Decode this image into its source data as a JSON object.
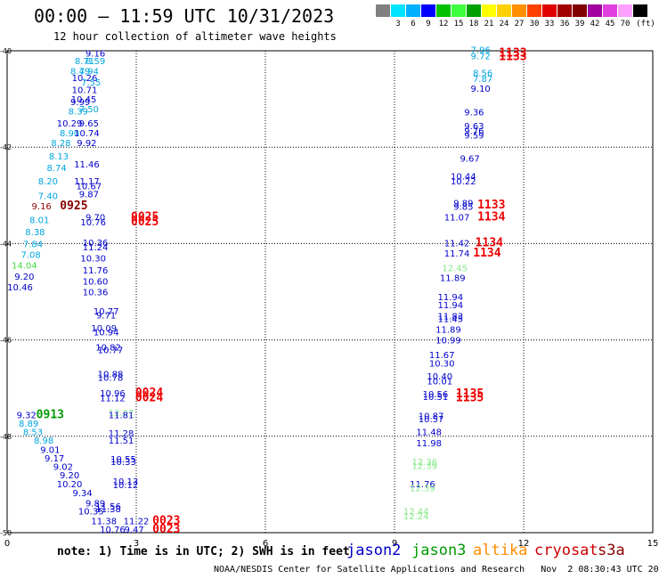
{
  "header": {
    "title": "00:00 – 11:59 UTC 10/31/2023",
    "subtitle": "12 hour collection of altimeter wave heights"
  },
  "color_scale": {
    "unit_label": "(ft)",
    "bins": [
      {
        "label": "",
        "color": "#808080"
      },
      {
        "label": "3",
        "color": "#00e5ff"
      },
      {
        "label": "6",
        "color": "#00b0ff"
      },
      {
        "label": "9",
        "color": "#0000ff"
      },
      {
        "label": "12",
        "color": "#00c000"
      },
      {
        "label": "15",
        "color": "#40ff40"
      },
      {
        "label": "18",
        "color": "#00a000"
      },
      {
        "label": "21",
        "color": "#ffff00"
      },
      {
        "label": "24",
        "color": "#ffd000"
      },
      {
        "label": "27",
        "color": "#ff9000"
      },
      {
        "label": "30",
        "color": "#ff4000"
      },
      {
        "label": "33",
        "color": "#e00000"
      },
      {
        "label": "36",
        "color": "#a00000"
      },
      {
        "label": "39",
        "color": "#800000"
      },
      {
        "label": "42",
        "color": "#a000a0"
      },
      {
        "label": "45",
        "color": "#e040e0"
      },
      {
        "label": "70",
        "color": "#ffa0ff"
      },
      {
        "label": "",
        "color": "#000000"
      }
    ]
  },
  "note": "note: 1) Time is in UTC; 2) SWH is in feet",
  "missions": [
    {
      "id": "jason2",
      "label": "jason2",
      "color": "#0000cc"
    },
    {
      "id": "jason3",
      "label": "jason3",
      "color": "#009900"
    },
    {
      "id": "altika",
      "label": "altika",
      "color": "#ff8c00"
    },
    {
      "id": "cryosat",
      "label": "cryosat",
      "color": "#cc0000"
    },
    {
      "id": "s3a",
      "label": "s3a",
      "color": "#8b0000"
    }
  ],
  "footer": "NOAA/NESDIS Center for Satellite Applications and Research   Nov  2 08:30:43 UTC 2023",
  "chart_data": {
    "type": "scatter",
    "title": "00:00 – 11:59 UTC 10/31/2023",
    "subtitle": "12 hour collection of altimeter wave heights",
    "xlim": [
      0,
      15
    ],
    "ylim": [
      -50,
      -40
    ],
    "x_ticks": [
      "0",
      "3",
      "6",
      "9",
      "12",
      "15"
    ],
    "y_ticks": [
      "-40",
      "-42",
      "-44",
      "-46",
      "-48",
      "-50"
    ],
    "grid": true,
    "colors": {
      "blue": "#0000cc",
      "cyan": "#00a5e0",
      "green": "#44dd44",
      "lightgreen": "#88e888",
      "darkgreen": "#009900",
      "red": "#ee0000",
      "darkred": "#880000"
    },
    "points": [
      {
        "x": 2.05,
        "y": -40.05,
        "t": "9.16",
        "c": "blue"
      },
      {
        "x": 1.8,
        "y": -40.2,
        "t": "8.71",
        "c": "cyan"
      },
      {
        "x": 2.05,
        "y": -40.2,
        "t": "8.59",
        "c": "cyan"
      },
      {
        "x": 1.7,
        "y": -40.42,
        "t": "8.49",
        "c": "cyan"
      },
      {
        "x": 1.9,
        "y": -40.42,
        "t": "7.94",
        "c": "cyan"
      },
      {
        "x": 1.8,
        "y": -40.55,
        "t": "10.26",
        "c": "blue"
      },
      {
        "x": 1.95,
        "y": -40.65,
        "t": "7.55",
        "c": "cyan"
      },
      {
        "x": 1.8,
        "y": -40.8,
        "t": "10.71",
        "c": "blue"
      },
      {
        "x": 1.78,
        "y": -41.0,
        "t": "10.45",
        "c": "blue"
      },
      {
        "x": 1.7,
        "y": -41.05,
        "t": "9.99",
        "c": "blue"
      },
      {
        "x": 1.9,
        "y": -41.2,
        "t": "7.50",
        "c": "cyan"
      },
      {
        "x": 1.65,
        "y": -41.25,
        "t": "8.39",
        "c": "cyan"
      },
      {
        "x": 1.45,
        "y": -41.5,
        "t": "10.29",
        "c": "blue"
      },
      {
        "x": 1.9,
        "y": -41.5,
        "t": "9.65",
        "c": "blue"
      },
      {
        "x": 1.45,
        "y": -41.7,
        "t": "8.90",
        "c": "cyan"
      },
      {
        "x": 1.85,
        "y": -41.7,
        "t": "10.74",
        "c": "blue"
      },
      {
        "x": 1.25,
        "y": -41.9,
        "t": "8.28",
        "c": "cyan"
      },
      {
        "x": 1.85,
        "y": -41.9,
        "t": "9.92",
        "c": "blue"
      },
      {
        "x": 1.2,
        "y": -42.18,
        "t": "8.13",
        "c": "cyan"
      },
      {
        "x": 1.15,
        "y": -42.42,
        "t": "8.74",
        "c": "cyan"
      },
      {
        "x": 1.85,
        "y": -42.35,
        "t": "11.46",
        "c": "blue"
      },
      {
        "x": 0.95,
        "y": -42.7,
        "t": "8.20",
        "c": "cyan"
      },
      {
        "x": 1.85,
        "y": -42.7,
        "t": "11.17",
        "c": "blue"
      },
      {
        "x": 1.9,
        "y": -42.8,
        "t": "10.67",
        "c": "blue"
      },
      {
        "x": 0.95,
        "y": -43.0,
        "t": "7.40",
        "c": "cyan"
      },
      {
        "x": 1.9,
        "y": -42.97,
        "t": "9.87",
        "c": "blue"
      },
      {
        "x": 0.8,
        "y": -43.22,
        "t": "9.16",
        "c": "darkred"
      },
      {
        "x": 1.55,
        "y": -43.22,
        "t": "0925",
        "c": "darkred",
        "bold": true
      },
      {
        "x": 0.75,
        "y": -43.5,
        "t": "8.01",
        "c": "cyan"
      },
      {
        "x": 2.05,
        "y": -43.45,
        "t": "9.70",
        "c": "blue"
      },
      {
        "x": 2.0,
        "y": -43.55,
        "t": "10.76",
        "c": "blue"
      },
      {
        "x": 3.2,
        "y": -43.45,
        "t": "0025",
        "c": "red",
        "bold": true
      },
      {
        "x": 3.2,
        "y": -43.55,
        "t": "0025",
        "c": "red",
        "bold": true
      },
      {
        "x": 0.65,
        "y": -43.75,
        "t": "8.38",
        "c": "cyan"
      },
      {
        "x": 0.6,
        "y": -44.0,
        "t": "7.84",
        "c": "cyan"
      },
      {
        "x": 2.05,
        "y": -43.97,
        "t": "10.36",
        "c": "blue"
      },
      {
        "x": 2.05,
        "y": -44.07,
        "t": "11.24",
        "c": "blue"
      },
      {
        "x": 0.55,
        "y": -44.22,
        "t": "7.08",
        "c": "cyan"
      },
      {
        "x": 2.0,
        "y": -44.3,
        "t": "10.30",
        "c": "blue"
      },
      {
        "x": 0.4,
        "y": -44.45,
        "t": "14.04",
        "c": "green"
      },
      {
        "x": 2.05,
        "y": -44.55,
        "t": "11.76",
        "c": "blue"
      },
      {
        "x": 0.4,
        "y": -44.68,
        "t": "9.20",
        "c": "blue"
      },
      {
        "x": 2.05,
        "y": -44.78,
        "t": "10.60",
        "c": "blue"
      },
      {
        "x": 0.3,
        "y": -44.9,
        "t": "10.46",
        "c": "blue"
      },
      {
        "x": 2.05,
        "y": -45.0,
        "t": "10.36",
        "c": "blue"
      },
      {
        "x": 2.3,
        "y": -45.4,
        "t": "10.77",
        "c": "blue"
      },
      {
        "x": 2.3,
        "y": -45.48,
        "t": "9.71",
        "c": "blue"
      },
      {
        "x": 2.25,
        "y": -45.75,
        "t": "10.09",
        "c": "blue"
      },
      {
        "x": 2.3,
        "y": -45.83,
        "t": "10.94",
        "c": "blue"
      },
      {
        "x": 2.35,
        "y": -46.15,
        "t": "10.82",
        "c": "blue"
      },
      {
        "x": 2.4,
        "y": -46.2,
        "t": "10.77",
        "c": "blue"
      },
      {
        "x": 2.4,
        "y": -46.7,
        "t": "10.88",
        "c": "blue"
      },
      {
        "x": 2.4,
        "y": -46.77,
        "t": "10.78",
        "c": "blue"
      },
      {
        "x": 2.45,
        "y": -47.1,
        "t": "10.96",
        "c": "blue"
      },
      {
        "x": 3.3,
        "y": -47.1,
        "t": "0024",
        "c": "red",
        "bold": true
      },
      {
        "x": 2.45,
        "y": -47.2,
        "t": "11.12",
        "c": "blue"
      },
      {
        "x": 3.3,
        "y": -47.2,
        "t": "0024",
        "c": "red",
        "bold": true
      },
      {
        "x": 2.65,
        "y": -47.5,
        "t": "12.07",
        "c": "lightgreen"
      },
      {
        "x": 2.65,
        "y": -47.55,
        "t": "11.81",
        "c": "blue"
      },
      {
        "x": 0.45,
        "y": -47.55,
        "t": "9.32",
        "c": "blue"
      },
      {
        "x": 1.0,
        "y": -47.55,
        "t": "0913",
        "c": "darkgreen",
        "bold": true
      },
      {
        "x": 0.5,
        "y": -47.73,
        "t": "8.89",
        "c": "cyan"
      },
      {
        "x": 0.6,
        "y": -47.9,
        "t": "8.53",
        "c": "cyan"
      },
      {
        "x": 2.65,
        "y": -47.93,
        "t": "11.28",
        "c": "blue"
      },
      {
        "x": 0.85,
        "y": -48.08,
        "t": "8.98",
        "c": "cyan"
      },
      {
        "x": 2.65,
        "y": -48.08,
        "t": "11.51",
        "c": "blue"
      },
      {
        "x": 1.0,
        "y": -48.27,
        "t": "9.01",
        "c": "blue"
      },
      {
        "x": 1.1,
        "y": -48.45,
        "t": "9.17",
        "c": "blue"
      },
      {
        "x": 2.7,
        "y": -48.47,
        "t": "10.55",
        "c": "blue"
      },
      {
        "x": 1.3,
        "y": -48.62,
        "t": "9.02",
        "c": "blue"
      },
      {
        "x": 2.7,
        "y": -48.52,
        "t": "10.33",
        "c": "blue"
      },
      {
        "x": 1.45,
        "y": -48.8,
        "t": "9.20",
        "c": "blue"
      },
      {
        "x": 2.75,
        "y": -48.93,
        "t": "10.13",
        "c": "blue"
      },
      {
        "x": 1.45,
        "y": -48.98,
        "t": "10.20",
        "c": "blue"
      },
      {
        "x": 2.75,
        "y": -49.0,
        "t": "10.12",
        "c": "blue"
      },
      {
        "x": 1.75,
        "y": -49.17,
        "t": "9.34",
        "c": "blue"
      },
      {
        "x": 2.05,
        "y": -49.38,
        "t": "9.89",
        "c": "blue"
      },
      {
        "x": 2.35,
        "y": -49.45,
        "t": "11.56",
        "c": "blue"
      },
      {
        "x": 2.35,
        "y": -49.5,
        "t": "11.38",
        "c": "blue"
      },
      {
        "x": 1.95,
        "y": -49.55,
        "t": "10.35",
        "c": "blue"
      },
      {
        "x": 2.25,
        "y": -49.75,
        "t": "11.38",
        "c": "blue"
      },
      {
        "x": 3.0,
        "y": -49.75,
        "t": "11.22",
        "c": "blue"
      },
      {
        "x": 3.7,
        "y": -49.75,
        "t": "0023",
        "c": "red",
        "bold": true
      },
      {
        "x": 2.45,
        "y": -49.93,
        "t": "10.76",
        "c": "blue"
      },
      {
        "x": 2.95,
        "y": -49.93,
        "t": "9.47",
        "c": "blue"
      },
      {
        "x": 3.7,
        "y": -49.93,
        "t": "0023",
        "c": "red",
        "bold": true
      },
      {
        "x": 11.0,
        "y": -39.97,
        "t": "7.96",
        "c": "cyan"
      },
      {
        "x": 11.0,
        "y": -40.1,
        "t": "9.72",
        "c": "cyan"
      },
      {
        "x": 11.75,
        "y": -40.05,
        "t": "1133",
        "c": "red",
        "bold": true
      },
      {
        "x": 11.75,
        "y": -40.12,
        "t": "1133",
        "c": "red",
        "bold": true
      },
      {
        "x": 11.05,
        "y": -40.45,
        "t": "8.56",
        "c": "cyan"
      },
      {
        "x": 11.05,
        "y": -40.57,
        "t": "7.87",
        "c": "cyan"
      },
      {
        "x": 11.0,
        "y": -40.78,
        "t": "9.10",
        "c": "blue"
      },
      {
        "x": 10.85,
        "y": -41.27,
        "t": "9.36",
        "c": "blue"
      },
      {
        "x": 10.85,
        "y": -41.55,
        "t": "9.63",
        "c": "blue"
      },
      {
        "x": 10.85,
        "y": -41.65,
        "t": "9.76",
        "c": "blue"
      },
      {
        "x": 10.85,
        "y": -41.75,
        "t": "9.59",
        "c": "blue"
      },
      {
        "x": 10.75,
        "y": -42.23,
        "t": "9.67",
        "c": "blue"
      },
      {
        "x": 10.6,
        "y": -42.6,
        "t": "10.44",
        "c": "blue"
      },
      {
        "x": 10.6,
        "y": -42.7,
        "t": "10.22",
        "c": "blue"
      },
      {
        "x": 10.6,
        "y": -43.15,
        "t": "9.89",
        "c": "blue"
      },
      {
        "x": 10.6,
        "y": -43.23,
        "t": "9.85",
        "c": "blue"
      },
      {
        "x": 11.25,
        "y": -43.2,
        "t": "1133",
        "c": "red",
        "bold": true
      },
      {
        "x": 10.45,
        "y": -43.45,
        "t": "11.07",
        "c": "blue"
      },
      {
        "x": 11.25,
        "y": -43.45,
        "t": "1134",
        "c": "red",
        "bold": true
      },
      {
        "x": 10.45,
        "y": -43.98,
        "t": "11.42",
        "c": "blue"
      },
      {
        "x": 11.2,
        "y": -43.98,
        "t": "1134",
        "c": "red",
        "bold": true
      },
      {
        "x": 10.45,
        "y": -44.2,
        "t": "11.74",
        "c": "blue"
      },
      {
        "x": 11.15,
        "y": -44.2,
        "t": "1134",
        "c": "red",
        "bold": true
      },
      {
        "x": 10.4,
        "y": -44.5,
        "t": "12.45",
        "c": "lightgreen"
      },
      {
        "x": 10.35,
        "y": -44.7,
        "t": "11.89",
        "c": "blue"
      },
      {
        "x": 10.3,
        "y": -45.1,
        "t": "11.94",
        "c": "blue"
      },
      {
        "x": 10.3,
        "y": -45.27,
        "t": "11.94",
        "c": "blue"
      },
      {
        "x": 10.3,
        "y": -45.5,
        "t": "11.83",
        "c": "blue"
      },
      {
        "x": 10.3,
        "y": -45.55,
        "t": "11.45",
        "c": "blue"
      },
      {
        "x": 10.25,
        "y": -45.78,
        "t": "11.89",
        "c": "blue"
      },
      {
        "x": 10.25,
        "y": -46.0,
        "t": "10.99",
        "c": "blue"
      },
      {
        "x": 10.1,
        "y": -46.3,
        "t": "11.67",
        "c": "blue"
      },
      {
        "x": 10.1,
        "y": -46.48,
        "t": "10.30",
        "c": "blue"
      },
      {
        "x": 10.05,
        "y": -46.75,
        "t": "10.40",
        "c": "blue"
      },
      {
        "x": 10.05,
        "y": -46.85,
        "t": "10.01",
        "c": "blue"
      },
      {
        "x": 9.95,
        "y": -47.12,
        "t": "10.56",
        "c": "blue"
      },
      {
        "x": 9.95,
        "y": -47.17,
        "t": "10.51",
        "c": "blue"
      },
      {
        "x": 10.75,
        "y": -47.12,
        "t": "1135",
        "c": "red",
        "bold": true
      },
      {
        "x": 10.75,
        "y": -47.2,
        "t": "1135",
        "c": "red",
        "bold": true
      },
      {
        "x": 9.85,
        "y": -47.57,
        "t": "10.87",
        "c": "blue"
      },
      {
        "x": 9.85,
        "y": -47.63,
        "t": "10.57",
        "c": "blue"
      },
      {
        "x": 9.8,
        "y": -47.9,
        "t": "11.48",
        "c": "blue"
      },
      {
        "x": 9.8,
        "y": -48.13,
        "t": "11.98",
        "c": "blue"
      },
      {
        "x": 9.7,
        "y": -48.52,
        "t": "12.36",
        "c": "lightgreen"
      },
      {
        "x": 9.7,
        "y": -48.6,
        "t": "12.39",
        "c": "lightgreen"
      },
      {
        "x": 9.65,
        "y": -48.98,
        "t": "11.76",
        "c": "blue"
      },
      {
        "x": 9.65,
        "y": -49.07,
        "t": "12.39",
        "c": "lightgreen"
      },
      {
        "x": 9.5,
        "y": -49.55,
        "t": "12.44",
        "c": "lightgreen"
      },
      {
        "x": 9.5,
        "y": -49.65,
        "t": "12.24",
        "c": "lightgreen"
      }
    ]
  }
}
